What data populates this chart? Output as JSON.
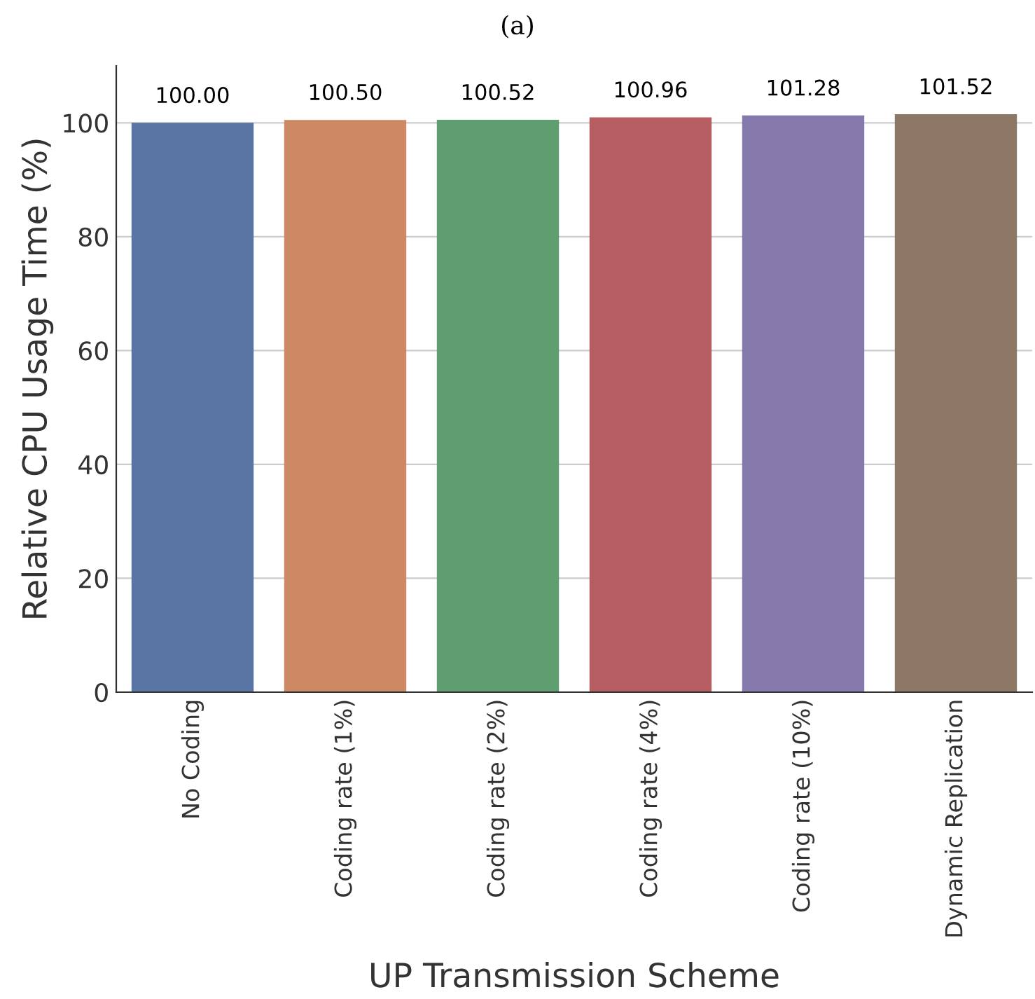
{
  "chart_data": {
    "type": "bar",
    "title": "(a)",
    "xlabel": "UP Transmission Scheme",
    "ylabel": "Relative CPU Usage Time (%)",
    "categories": [
      "No Coding",
      "Coding rate (1%)",
      "Coding rate (2%)",
      "Coding rate (4%)",
      "Coding rate (10%)",
      "Dynamic Replication"
    ],
    "values": [
      100.0,
      100.5,
      100.52,
      100.96,
      101.28,
      101.52
    ],
    "value_labels": [
      "100.00",
      "100.50",
      "100.52",
      "100.96",
      "101.28",
      "101.52"
    ],
    "colors": [
      "#5975a4",
      "#cc8963",
      "#5f9e6e",
      "#b55d60",
      "#857aab",
      "#8d7866"
    ],
    "ylim": [
      0,
      110
    ],
    "yticks": [
      0,
      20,
      40,
      60,
      80,
      100
    ],
    "grid": "y"
  }
}
